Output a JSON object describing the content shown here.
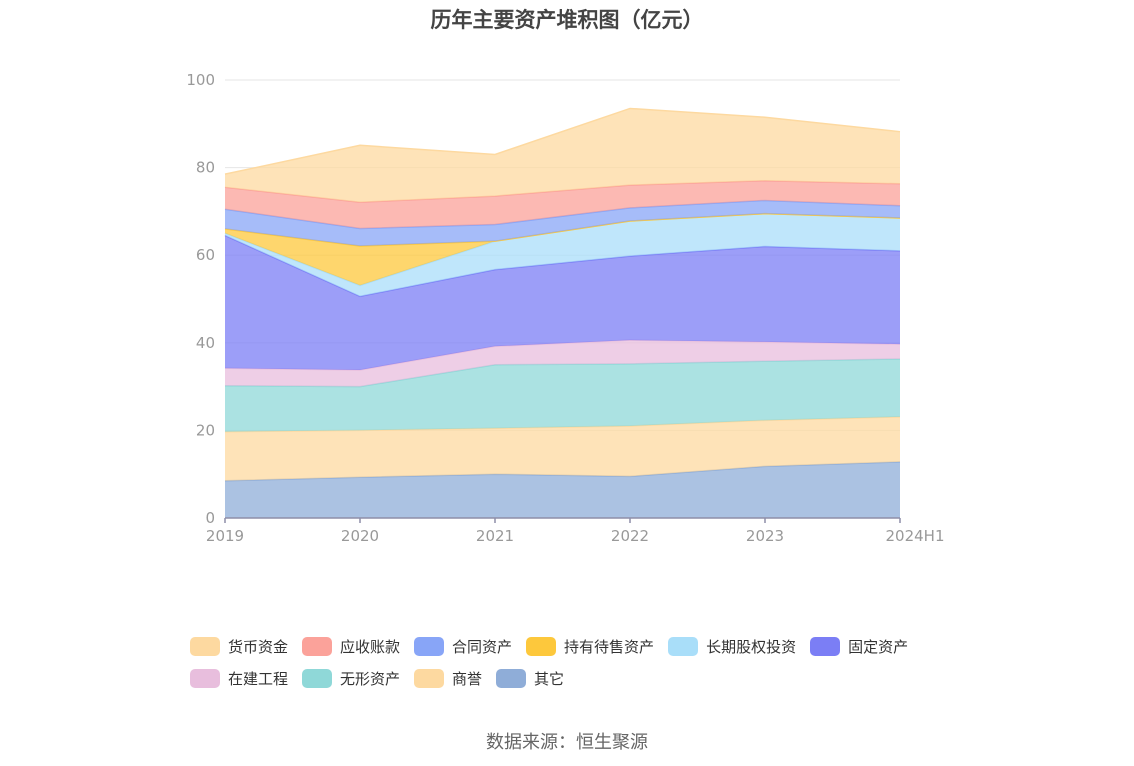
{
  "chart_data": {
    "type": "area",
    "stacked": true,
    "title": "历年主要资产堆积图（亿元）",
    "categories": [
      "2019",
      "2020",
      "2021",
      "2022",
      "2023",
      "2024H1"
    ],
    "ylim": [
      0,
      100
    ],
    "yticks": [
      0,
      20,
      40,
      60,
      80,
      100
    ],
    "grid": true,
    "series": [
      {
        "name": "其它",
        "color": "#8fadd8",
        "values": [
          8.5,
          9.3,
          10.0,
          9.5,
          11.8,
          12.8
        ]
      },
      {
        "name": "商誉",
        "color": "#fdd9a0",
        "values": [
          11.2,
          10.7,
          10.5,
          11.5,
          10.5,
          10.3
        ]
      },
      {
        "name": "无形资产",
        "color": "#8fd8d8",
        "values": [
          10.5,
          10.0,
          14.5,
          14.2,
          13.5,
          13.2
        ]
      },
      {
        "name": "在建工程",
        "color": "#e8bedd",
        "values": [
          4.0,
          3.8,
          4.2,
          5.4,
          4.4,
          3.4
        ]
      },
      {
        "name": "固定资产",
        "color": "#7b7ef5",
        "values": [
          30.3,
          16.8,
          17.5,
          19.2,
          21.8,
          21.3
        ]
      },
      {
        "name": "长期股权投资",
        "color": "#a9def9",
        "values": [
          0.5,
          2.5,
          6.5,
          8.0,
          7.5,
          7.5
        ]
      },
      {
        "name": "持有待售资产",
        "color": "#fdc83c",
        "values": [
          1.0,
          9.0,
          0.0,
          0.0,
          0.0,
          0.0
        ]
      },
      {
        "name": "合同资产",
        "color": "#88a5f7",
        "values": [
          4.5,
          4.0,
          3.8,
          3.0,
          3.0,
          2.8
        ]
      },
      {
        "name": "应收账款",
        "color": "#fba29a",
        "values": [
          5.0,
          6.0,
          6.5,
          5.2,
          4.5,
          5.0
        ]
      },
      {
        "name": "货币资金",
        "color": "#fdd9a0",
        "values": [
          3.0,
          13.0,
          9.5,
          17.5,
          14.5,
          11.9
        ]
      }
    ],
    "legend": [
      "货币资金",
      "应收账款",
      "合同资产",
      "持有待售资产",
      "长期股权投资",
      "固定资产",
      "在建工程",
      "无形资产",
      "商誉",
      "其它"
    ],
    "legend_colors": [
      "#fdd9a0",
      "#fba29a",
      "#88a5f7",
      "#fdc83c",
      "#a9def9",
      "#7b7ef5",
      "#e8bedd",
      "#8fd8d8",
      "#fdd9a0",
      "#8fadd8"
    ],
    "source": "数据来源：恒生聚源"
  }
}
